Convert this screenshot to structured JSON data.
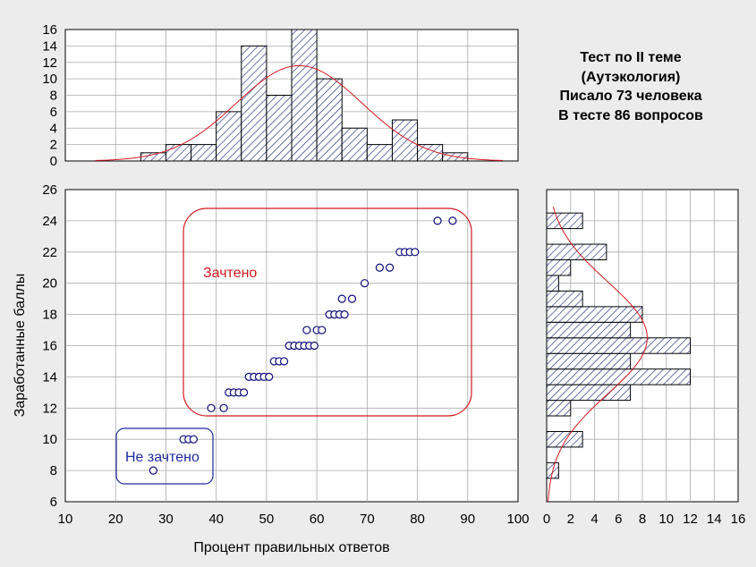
{
  "info": {
    "lines": [
      "Тест по II теме",
      "(Аутэкология)",
      "Писало 73 человека",
      "В тесте 86 вопросов"
    ]
  },
  "regions": {
    "pass": {
      "label": "Зачтено",
      "color": "#d2191e"
    },
    "fail": {
      "label": "Не зачтено",
      "color": "#1b2a9e"
    }
  },
  "chart_data": [
    {
      "type": "scatter",
      "xlabel": "Процент правильных ответов",
      "ylabel": "Заработанные баллы",
      "xlim": [
        10,
        100
      ],
      "ylim": [
        6,
        26
      ],
      "xticks": [
        "10",
        "20",
        "30",
        "40",
        "50",
        "60",
        "70",
        "80",
        "90",
        "100"
      ],
      "yticks": [
        "6",
        "8",
        "10",
        "12",
        "14",
        "16",
        "18",
        "20",
        "22",
        "24",
        "26"
      ],
      "grid": true,
      "points": [
        [
          27.5,
          8
        ],
        [
          33.5,
          10
        ],
        [
          34.5,
          10
        ],
        [
          35.5,
          10
        ],
        [
          39,
          12
        ],
        [
          41.5,
          12
        ],
        [
          42.5,
          13
        ],
        [
          43.5,
          13
        ],
        [
          44.5,
          13
        ],
        [
          45.5,
          13
        ],
        [
          46.5,
          14
        ],
        [
          47.5,
          14
        ],
        [
          48.5,
          14
        ],
        [
          49.5,
          14
        ],
        [
          50.5,
          14
        ],
        [
          51.5,
          15
        ],
        [
          52.5,
          15
        ],
        [
          53.5,
          15
        ],
        [
          54.5,
          16
        ],
        [
          55.5,
          16
        ],
        [
          56.5,
          16
        ],
        [
          57.5,
          16
        ],
        [
          58.5,
          16
        ],
        [
          59.5,
          16
        ],
        [
          58,
          17
        ],
        [
          60,
          17
        ],
        [
          61,
          17
        ],
        [
          62.5,
          18
        ],
        [
          63.5,
          18
        ],
        [
          64.5,
          18
        ],
        [
          65.5,
          18
        ],
        [
          65,
          19
        ],
        [
          67,
          19
        ],
        [
          69.5,
          20
        ],
        [
          72.5,
          21
        ],
        [
          74.5,
          21
        ],
        [
          76.5,
          22
        ],
        [
          77.5,
          22
        ],
        [
          78.5,
          22
        ],
        [
          79.5,
          22
        ],
        [
          84,
          24
        ],
        [
          87,
          24
        ]
      ]
    },
    {
      "type": "bar",
      "orientation": "vertical",
      "xlim": [
        10,
        100
      ],
      "ylim": [
        0,
        16
      ],
      "yticks": [
        "0",
        "2",
        "4",
        "6",
        "8",
        "10",
        "12",
        "14",
        "16"
      ],
      "grid": true,
      "bin_width": 5,
      "bins": [
        {
          "x0": 25,
          "value": 1
        },
        {
          "x0": 30,
          "value": 2
        },
        {
          "x0": 35,
          "value": 2
        },
        {
          "x0": 40,
          "value": 6
        },
        {
          "x0": 45,
          "value": 14
        },
        {
          "x0": 50,
          "value": 8
        },
        {
          "x0": 55,
          "value": 16
        },
        {
          "x0": 60,
          "value": 10
        },
        {
          "x0": 65,
          "value": 4
        },
        {
          "x0": 70,
          "value": 2
        },
        {
          "x0": 75,
          "value": 5
        },
        {
          "x0": 80,
          "value": 2
        },
        {
          "x0": 85,
          "value": 1
        }
      ],
      "normal_fit": {
        "mean": 56.5,
        "sd": 12.5,
        "peak": 11.6,
        "range": [
          16,
          97
        ]
      }
    },
    {
      "type": "bar",
      "orientation": "horizontal",
      "xlim": [
        0,
        16
      ],
      "ylim": [
        6,
        26
      ],
      "xticks": [
        "0",
        "2",
        "4",
        "6",
        "8",
        "10",
        "12",
        "14",
        "16"
      ],
      "grid": true,
      "bin_height": 1,
      "bins": [
        {
          "y0": 7.5,
          "value": 1
        },
        {
          "y0": 9.5,
          "value": 3
        },
        {
          "y0": 11.5,
          "value": 2
        },
        {
          "y0": 12.5,
          "value": 7
        },
        {
          "y0": 13.5,
          "value": 12
        },
        {
          "y0": 14.5,
          "value": 7
        },
        {
          "y0": 15.5,
          "value": 12
        },
        {
          "y0": 16.5,
          "value": 7
        },
        {
          "y0": 17.5,
          "value": 8
        },
        {
          "y0": 18.5,
          "value": 3
        },
        {
          "y0": 19.5,
          "value": 1
        },
        {
          "y0": 20.5,
          "value": 2
        },
        {
          "y0": 21.5,
          "value": 5
        },
        {
          "y0": 23.5,
          "value": 3
        }
      ],
      "normal_fit": {
        "mean": 16.5,
        "sd": 3.6,
        "peak": 8.4,
        "range": [
          6,
          25
        ]
      }
    }
  ]
}
